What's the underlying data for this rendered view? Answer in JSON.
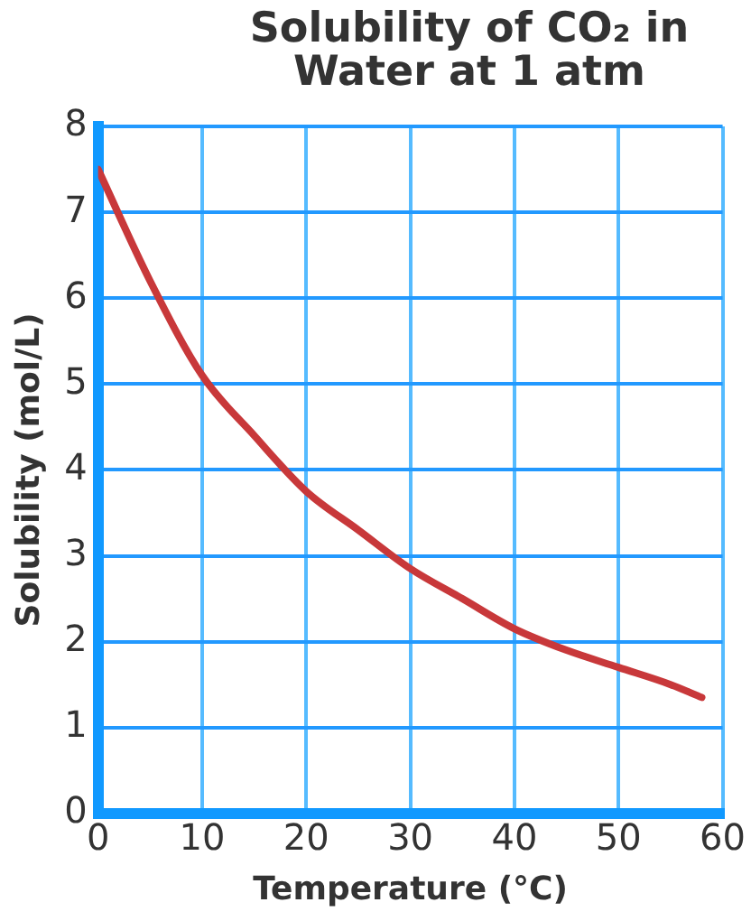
{
  "chart_data": {
    "type": "line",
    "title": "Solubility of CO₂ in Water at 1 atm",
    "xlabel": "Temperature (°C)",
    "ylabel": "Solubility (mol/L)",
    "x": [
      0,
      5,
      10,
      15,
      20,
      25,
      30,
      35,
      40,
      45,
      50,
      55,
      58
    ],
    "series": [
      {
        "color": "#c8383a",
        "values": [
          7.5,
          6.2,
          5.1,
          4.4,
          3.75,
          3.3,
          2.85,
          2.5,
          2.15,
          1.9,
          1.7,
          1.5,
          1.35
        ]
      }
    ],
    "xlim": [
      0,
      60
    ],
    "xticks": [
      0,
      10,
      20,
      30,
      40,
      50,
      60
    ],
    "ylim": [
      0,
      8
    ],
    "yticks": [
      0,
      1,
      2,
      3,
      4,
      5,
      6,
      7,
      8
    ],
    "grid": true,
    "legend": false,
    "marker": "none",
    "line_style": "solid"
  }
}
